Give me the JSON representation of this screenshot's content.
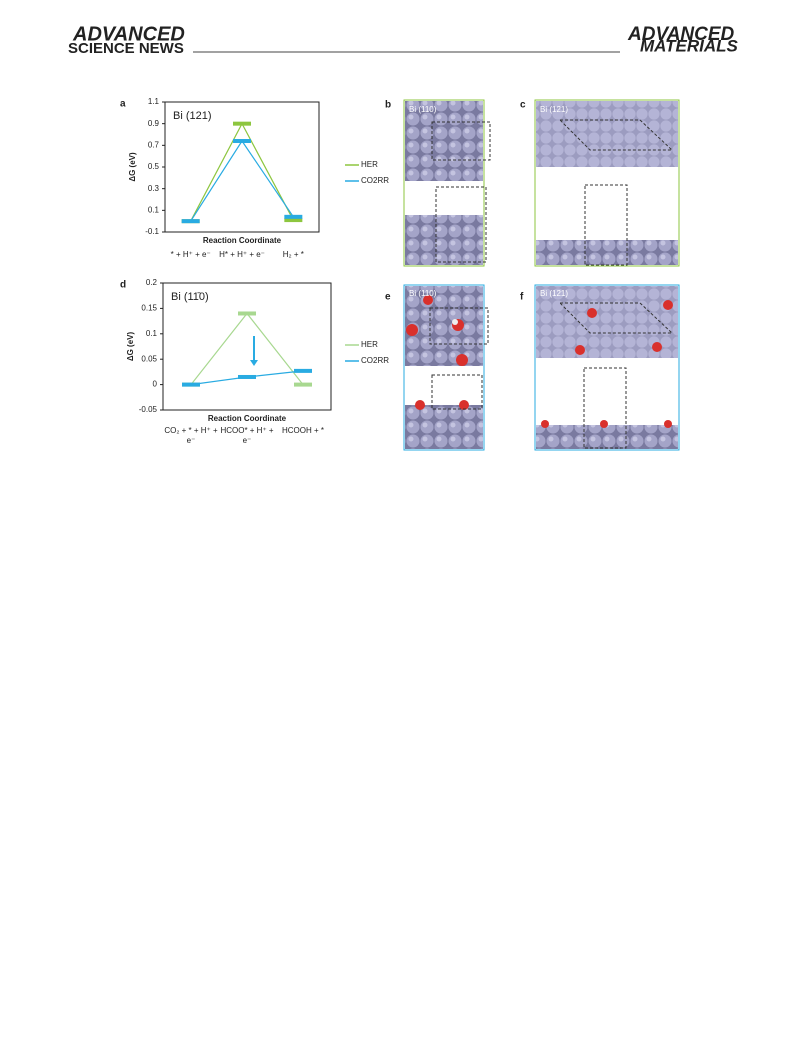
{
  "header": {
    "left_top": "ADVANCED",
    "left_bottom": "SCIENCE NEWS",
    "right_top": "ADVANCED",
    "right_bottom": "MATERIALS"
  },
  "chart_data": [
    {
      "type": "energy-levels",
      "panel": "a",
      "title": "Bi (121)",
      "ylabel": "ΔG (eV)",
      "xlabel": "Reaction Coordinate",
      "categories": [
        "* + H⁺ + e⁻",
        "H* + H⁺ + e⁻",
        "H₂ + *"
      ],
      "series": [
        {
          "name": "HER",
          "color": "#8dc63f",
          "values": [
            0,
            0.9,
            0.01
          ]
        },
        {
          "name": "CO2RR",
          "color": "#29abe2",
          "values": [
            0,
            0.74,
            0.04
          ]
        }
      ],
      "ylim": [
        -0.1,
        1.1
      ],
      "yticks": [
        -0.1,
        0.1,
        0.3,
        0.5,
        0.7,
        0.9,
        1.1
      ]
    },
    {
      "type": "energy-levels",
      "panel": "d",
      "title": "Bi (11̄0)",
      "ylabel": "ΔG (eV)",
      "xlabel": "Reaction Coordinate",
      "categories": [
        "CO₂ + * + H⁺ + e⁻",
        "HCOO* + H⁺ + e⁻",
        "HCOOH + *"
      ],
      "series": [
        {
          "name": "HER",
          "color": "#a8d890",
          "values": [
            0,
            0.14,
            0
          ]
        },
        {
          "name": "CO2RR",
          "color": "#29abe2",
          "values": [
            0,
            0.015,
            0.027
          ]
        }
      ],
      "ylim": [
        -0.05,
        0.2
      ],
      "yticks": [
        -0.05,
        0,
        0.05,
        0.1,
        0.15,
        0.2
      ]
    }
  ],
  "panels": [
    {
      "label": "b",
      "caption": "Bi (110)"
    },
    {
      "label": "c",
      "caption": "Bi (121)"
    },
    {
      "label": "e",
      "caption": "Bi (110)"
    },
    {
      "label": "f",
      "caption": "Bi (121)"
    }
  ]
}
